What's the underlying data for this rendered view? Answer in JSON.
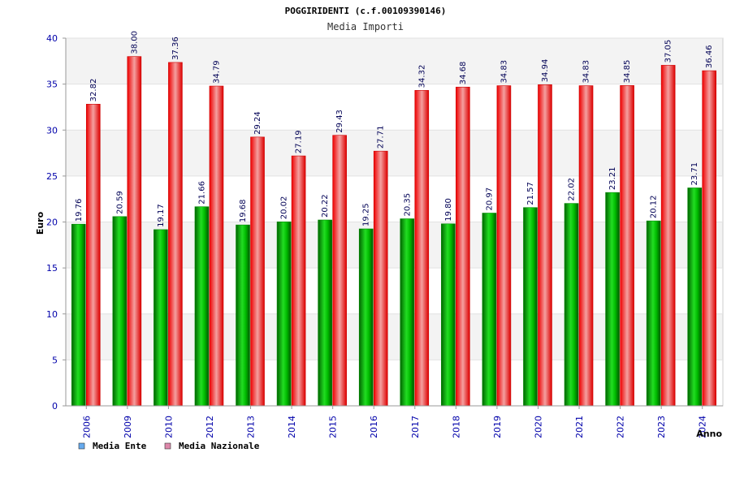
{
  "chart_data": {
    "type": "bar",
    "title": "POGGIRIDENTI (c.f.00109390146)",
    "subtitle": "Media Importi",
    "xlabel": "Anno",
    "ylabel": "Euro",
    "ylim": [
      0,
      40
    ],
    "yticks": [
      "0",
      "5",
      "10",
      "15",
      "20",
      "25",
      "30",
      "35",
      "40"
    ],
    "categories": [
      "2006",
      "2009",
      "2010",
      "2012",
      "2013",
      "2014",
      "2015",
      "2016",
      "2017",
      "2018",
      "2019",
      "2020",
      "2021",
      "2022",
      "2023",
      "2024"
    ],
    "series": [
      {
        "name": "Media Ente",
        "color": "#00aa00",
        "legend_color": "#66aaee",
        "values": [
          19.76,
          20.59,
          19.17,
          21.66,
          19.68,
          20.02,
          20.22,
          19.25,
          20.35,
          19.8,
          20.97,
          21.57,
          22.02,
          23.21,
          20.12,
          23.71
        ],
        "labels": [
          "19.76",
          "20.59",
          "19.17",
          "21.66",
          "19.68",
          "20.02",
          "20.22",
          "19.25",
          "20.35",
          "19.80",
          "20.97",
          "21.57",
          "22.02",
          "23.21",
          "20.12",
          "23.71"
        ]
      },
      {
        "name": "Media Nazionale",
        "color": "#ee0000",
        "legend_color": "#dd88aa",
        "values": [
          32.82,
          38.0,
          37.36,
          34.79,
          29.24,
          27.19,
          29.43,
          27.71,
          34.32,
          34.68,
          34.83,
          34.94,
          34.83,
          34.85,
          37.05,
          36.46
        ],
        "labels": [
          "32.82",
          "38.00",
          "37.36",
          "34.79",
          "29.24",
          "27.19",
          "29.43",
          "27.71",
          "34.32",
          "34.68",
          "34.83",
          "34.94",
          "34.83",
          "34.85",
          "37.05",
          "36.46"
        ]
      }
    ]
  }
}
